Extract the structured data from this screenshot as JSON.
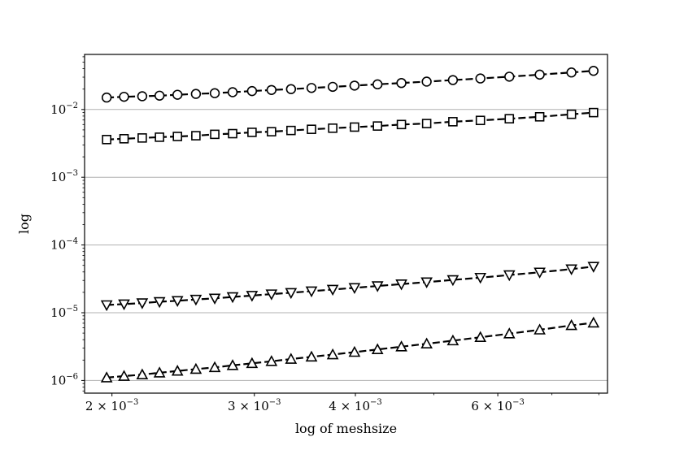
{
  "chart_data": {
    "type": "line",
    "title": "",
    "xlabel": "log of meshsize",
    "ylabel": "log",
    "xscale": "log",
    "yscale": "log",
    "xlim": [
      0.00185,
      0.0082
    ],
    "ylim": [
      6.5e-07,
      0.065
    ],
    "grid": "horizontal major gridlines",
    "line_style": "dashed",
    "line_color": "#000000",
    "x_ticks": [
      {
        "value": 0.002,
        "mantissa": "2",
        "exp": "−3"
      },
      {
        "value": 0.003,
        "mantissa": "3",
        "exp": "−3"
      },
      {
        "value": 0.004,
        "mantissa": "4",
        "exp": "−3"
      },
      {
        "value": 0.006,
        "mantissa": "6",
        "exp": "−3"
      }
    ],
    "y_ticks": [
      {
        "value": 1e-06,
        "exp": "−6"
      },
      {
        "value": 1e-05,
        "exp": "−5"
      },
      {
        "value": 0.0001,
        "exp": "−4"
      },
      {
        "value": 0.001,
        "exp": "−3"
      },
      {
        "value": 0.01,
        "exp": "−2"
      }
    ],
    "x": [
      0.00197,
      0.00207,
      0.00218,
      0.00229,
      0.00241,
      0.00254,
      0.00268,
      0.00282,
      0.00298,
      0.00315,
      0.00333,
      0.00353,
      0.00375,
      0.00399,
      0.00426,
      0.00456,
      0.0049,
      0.00528,
      0.00571,
      0.0062,
      0.00676,
      0.0074,
      0.00788
    ],
    "series": [
      {
        "marker": "circle",
        "values": [
          0.015,
          0.0154,
          0.0157,
          0.016,
          0.0165,
          0.017,
          0.0174,
          0.018,
          0.0187,
          0.0194,
          0.02,
          0.0208,
          0.0216,
          0.0225,
          0.0235,
          0.0246,
          0.0258,
          0.0272,
          0.0287,
          0.0305,
          0.0327,
          0.0352,
          0.0372
        ]
      },
      {
        "marker": "square",
        "values": [
          0.0036,
          0.0037,
          0.0038,
          0.0039,
          0.004,
          0.0041,
          0.0043,
          0.0044,
          0.0046,
          0.0047,
          0.0049,
          0.0051,
          0.0053,
          0.0055,
          0.0057,
          0.006,
          0.0062,
          0.0066,
          0.0069,
          0.0073,
          0.0078,
          0.0085,
          0.009
        ]
      },
      {
        "marker": "triangle-down",
        "values": [
          1.3e-05,
          1.34e-05,
          1.39e-05,
          1.45e-05,
          1.5e-05,
          1.57e-05,
          1.63e-05,
          1.71e-05,
          1.79e-05,
          1.88e-05,
          1.97e-05,
          2.08e-05,
          2.2e-05,
          2.33e-05,
          2.48e-05,
          2.64e-05,
          2.83e-05,
          3.05e-05,
          3.3e-05,
          3.6e-05,
          3.95e-05,
          4.4e-05,
          4.8e-05
        ]
      },
      {
        "marker": "triangle-up",
        "values": [
          1.1e-06,
          1.16e-06,
          1.22e-06,
          1.3e-06,
          1.38e-06,
          1.47e-06,
          1.56e-06,
          1.67e-06,
          1.79e-06,
          1.92e-06,
          2.07e-06,
          2.23e-06,
          2.41e-06,
          2.62e-06,
          2.87e-06,
          3.15e-06,
          3.48e-06,
          3.87e-06,
          4.34e-06,
          4.9e-06,
          5.6e-06,
          6.5e-06,
          7.1e-06
        ]
      }
    ]
  }
}
